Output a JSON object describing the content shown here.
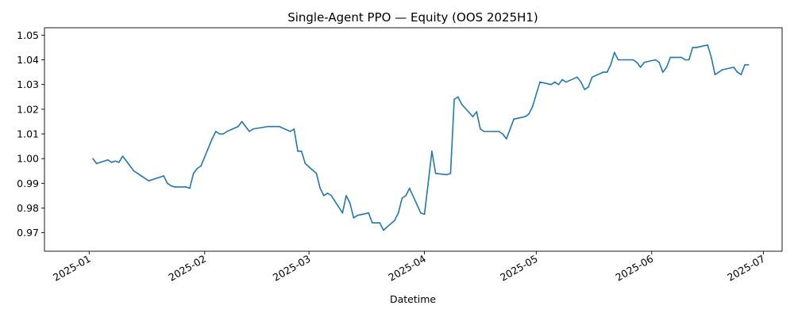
{
  "chart_data": {
    "type": "line",
    "title": "Single-Agent PPO — Equity (OOS 2025H1)",
    "xlabel": "Datetime",
    "ylabel": "",
    "x_ticks": [
      "2025-01",
      "2025-02",
      "2025-03",
      "2025-04",
      "2025-05",
      "2025-06",
      "2025-07"
    ],
    "y_ticks": [
      "0.97",
      "0.98",
      "0.99",
      "1.00",
      "1.01",
      "1.02",
      "1.03",
      "1.04",
      "1.05"
    ],
    "xlim": [
      "2024-12-20",
      "2025-07-06"
    ],
    "ylim": [
      0.9625,
      1.053
    ],
    "grid": false,
    "color": "#1f77b4",
    "series": [
      {
        "x": [
          "2025-01-02",
          "2025-01-03",
          "2025-01-06",
          "2025-01-07",
          "2025-01-08",
          "2025-01-09",
          "2025-01-10",
          "2025-01-13",
          "2025-01-14",
          "2025-01-15",
          "2025-01-16",
          "2025-01-17",
          "2025-01-21",
          "2025-01-22",
          "2025-01-23",
          "2025-01-24",
          "2025-01-27",
          "2025-01-28",
          "2025-01-29",
          "2025-01-30",
          "2025-01-31",
          "2025-02-03",
          "2025-02-04",
          "2025-02-05",
          "2025-02-06",
          "2025-02-07",
          "2025-02-10",
          "2025-02-11",
          "2025-02-12",
          "2025-02-13",
          "2025-02-14",
          "2025-02-18",
          "2025-02-19",
          "2025-02-20",
          "2025-02-21",
          "2025-02-24",
          "2025-02-25",
          "2025-02-26",
          "2025-02-27",
          "2025-02-28",
          "2025-03-03",
          "2025-03-04",
          "2025-03-05",
          "2025-03-06",
          "2025-03-07",
          "2025-03-10",
          "2025-03-11",
          "2025-03-12",
          "2025-03-13",
          "2025-03-14",
          "2025-03-17",
          "2025-03-18",
          "2025-03-19",
          "2025-03-20",
          "2025-03-21",
          "2025-03-24",
          "2025-03-25",
          "2025-03-26",
          "2025-03-27",
          "2025-03-28",
          "2025-03-31",
          "2025-04-01",
          "2025-04-02",
          "2025-04-03",
          "2025-04-04",
          "2025-04-07",
          "2025-04-08",
          "2025-04-09",
          "2025-04-10",
          "2025-04-11",
          "2025-04-14",
          "2025-04-15",
          "2025-04-16",
          "2025-04-17",
          "2025-04-21",
          "2025-04-22",
          "2025-04-23",
          "2025-04-24",
          "2025-04-25",
          "2025-04-28",
          "2025-04-29",
          "2025-04-30",
          "2025-05-01",
          "2025-05-02",
          "2025-05-05",
          "2025-05-06",
          "2025-05-07",
          "2025-05-08",
          "2025-05-09",
          "2025-05-12",
          "2025-05-13",
          "2025-05-14",
          "2025-05-15",
          "2025-05-16",
          "2025-05-19",
          "2025-05-20",
          "2025-05-21",
          "2025-05-22",
          "2025-05-23",
          "2025-05-27",
          "2025-05-28",
          "2025-05-29",
          "2025-05-30",
          "2025-06-02",
          "2025-06-03",
          "2025-06-04",
          "2025-06-05",
          "2025-06-06",
          "2025-06-09",
          "2025-06-10",
          "2025-06-11",
          "2025-06-12",
          "2025-06-13",
          "2025-06-16",
          "2025-06-17",
          "2025-06-18",
          "2025-06-20",
          "2025-06-23",
          "2025-06-24",
          "2025-06-25",
          "2025-06-26",
          "2025-06-27"
        ],
        "y": [
          1.0,
          0.998,
          0.9995,
          0.9985,
          0.999,
          0.9985,
          1.001,
          0.995,
          0.994,
          0.993,
          0.992,
          0.991,
          0.993,
          0.99,
          0.989,
          0.9885,
          0.9885,
          0.988,
          0.994,
          0.996,
          0.997,
          1.008,
          1.011,
          1.01,
          1.01,
          1.011,
          1.013,
          1.015,
          1.013,
          1.011,
          1.012,
          1.013,
          1.013,
          1.013,
          1.013,
          1.011,
          1.012,
          1.003,
          1.003,
          0.998,
          0.994,
          0.988,
          0.985,
          0.986,
          0.985,
          0.978,
          0.985,
          0.982,
          0.976,
          0.977,
          0.978,
          0.974,
          0.974,
          0.974,
          0.971,
          0.975,
          0.978,
          0.984,
          0.985,
          0.988,
          0.978,
          0.9775,
          0.99,
          1.003,
          0.994,
          0.9935,
          0.994,
          1.024,
          1.025,
          1.022,
          1.017,
          1.019,
          1.012,
          1.011,
          1.011,
          1.01,
          1.008,
          1.012,
          1.016,
          1.017,
          1.018,
          1.021,
          1.026,
          1.031,
          1.03,
          1.031,
          1.03,
          1.032,
          1.031,
          1.033,
          1.031,
          1.028,
          1.029,
          1.033,
          1.035,
          1.035,
          1.038,
          1.043,
          1.04,
          1.04,
          1.039,
          1.037,
          1.039,
          1.04,
          1.039,
          1.035,
          1.037,
          1.041,
          1.041,
          1.04,
          1.04,
          1.045,
          1.045,
          1.046,
          1.041,
          1.034,
          1.036,
          1.037,
          1.035,
          1.034,
          1.038,
          1.038
        ]
      }
    ]
  }
}
